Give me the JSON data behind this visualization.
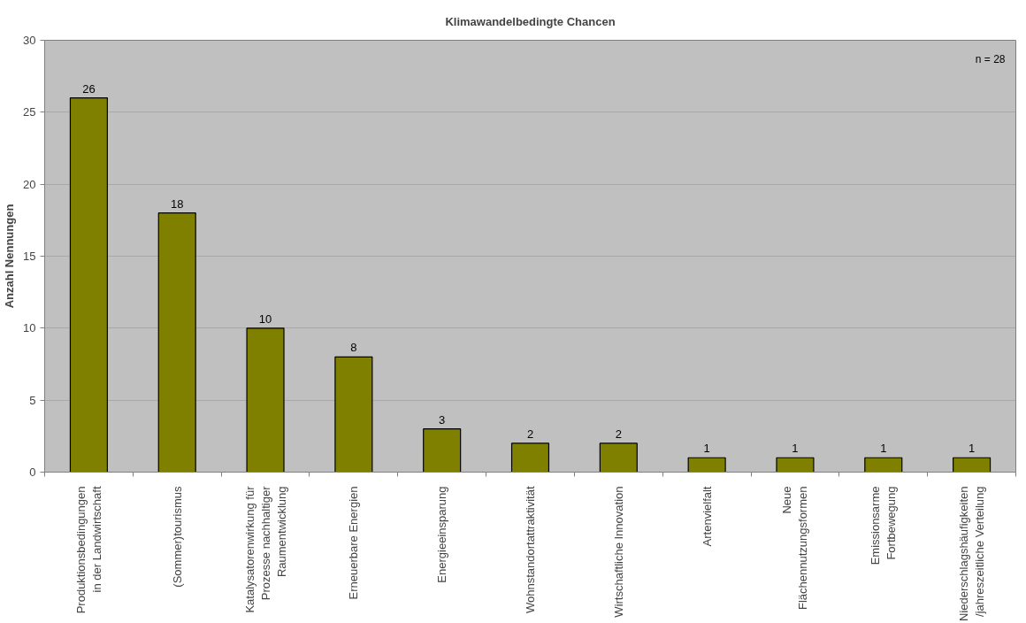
{
  "chart_data": {
    "type": "bar",
    "title": "Klimawandelbedingte Chancen",
    "ylabel": "Anzahl Nennungen",
    "categories": [
      "Produktionsbedingungen\nin der Landwirtschaft",
      "(Sommer)tourismus",
      "Katalysatorenwirkung für\nProzesse nachhaltiger\nRaumentwicklung",
      "Erneuerbare Energien",
      "Energieeinsparung",
      "Wohnstandortattraktivität",
      "Wirtschaftliche Innovation",
      "Artenvielfalt",
      "Neue\nFlächennutzungsformen",
      "Emissionsarme\nFortbewegung",
      "Niederschlagshäufigkeiten\n/jahreszeitliche Verteilung"
    ],
    "values": [
      26,
      18,
      10,
      8,
      3,
      2,
      2,
      1,
      1,
      1,
      1
    ],
    "color": "#808000",
    "ylim": [
      0,
      30
    ],
    "yticks": [
      0,
      5,
      10,
      15,
      20,
      25,
      30
    ],
    "grid": "y",
    "data_labels": true,
    "annotations": [
      "n = 28"
    ]
  }
}
